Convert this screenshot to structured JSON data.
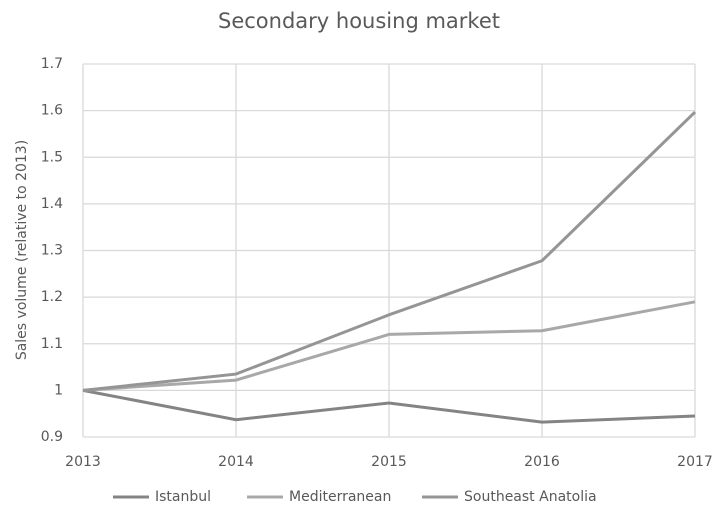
{
  "chart_data": {
    "type": "line",
    "title": "Secondary housing market",
    "y_label": "Sales volume (relative to 2013)",
    "x": [
      2013,
      2014,
      2015,
      2016,
      2017
    ],
    "xlim": [
      2013,
      2017
    ],
    "xticks": [
      2013,
      2014,
      2015,
      2016,
      2017
    ],
    "ylim": [
      0.9,
      1.7
    ],
    "yticks": [
      0.9,
      1,
      1.1,
      1.2,
      1.3,
      1.4,
      1.5,
      1.6,
      1.7
    ],
    "grid": true,
    "legend": "bottom",
    "series": [
      {
        "name": "Istanbul",
        "color": "#848484",
        "values": [
          1,
          0.937,
          0.973,
          0.932,
          0.945
        ]
      },
      {
        "name": "Mediterranean",
        "color": "#a8a8a8",
        "values": [
          1,
          1.022,
          1.12,
          1.128,
          1.19
        ]
      },
      {
        "name": "Southeast Anatolia",
        "color": "#959595",
        "values": [
          1,
          1.035,
          1.162,
          1.278,
          1.597
        ]
      }
    ]
  }
}
